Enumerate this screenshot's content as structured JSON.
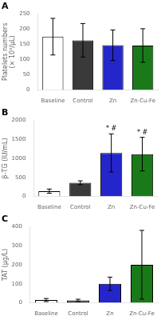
{
  "chart_data": [
    {
      "type": "bar",
      "title": "A",
      "categories": [
        "Baseline",
        "Control",
        "Zn",
        "Zn-Cu-Fe"
      ],
      "values": [
        175,
        163,
        147,
        146
      ],
      "errors": [
        60,
        55,
        50,
        55
      ],
      "colors": [
        "#ffffff",
        "#3a3a3a",
        "#2525cc",
        "#1a7a1a"
      ],
      "ylabel": "Platelets numbers\n(× 10³/μL)",
      "ylim": [
        0,
        250
      ],
      "yticks": [
        0,
        50,
        100,
        150,
        200,
        250
      ],
      "annotations": [],
      "grid": false
    },
    {
      "type": "bar",
      "title": "B",
      "categories": [
        "Baseline",
        "Control",
        "Zn",
        "Zn-Cu-Fe"
      ],
      "values": [
        140,
        360,
        1140,
        1110
      ],
      "errors": [
        55,
        50,
        500,
        440
      ],
      "colors": [
        "#ffffff",
        "#3a3a3a",
        "#2525cc",
        "#1a7a1a"
      ],
      "ylabel": "β-TG (IU/mL)",
      "ylim": [
        0,
        2000
      ],
      "yticks": [
        0,
        500,
        1000,
        1500,
        2000
      ],
      "annotations": [
        {
          "category": "Zn",
          "text": "* #"
        },
        {
          "category": "Zn-Cu-Fe",
          "text": "* #"
        }
      ],
      "grid": false
    },
    {
      "type": "bar",
      "title": "C",
      "categories": [
        "Baseline",
        "Control",
        "Zn",
        "Zn-Cu-Fe"
      ],
      "values": [
        15,
        13,
        100,
        200
      ],
      "errors": [
        8,
        6,
        35,
        180
      ],
      "colors": [
        "#ffffff",
        "#3a3a3a",
        "#2525cc",
        "#1a7a1a"
      ],
      "ylabel": "TAT (μg/L)",
      "ylim": [
        0,
        400
      ],
      "yticks": [
        0,
        100,
        200,
        300,
        400
      ],
      "annotations": [],
      "grid": false
    }
  ]
}
